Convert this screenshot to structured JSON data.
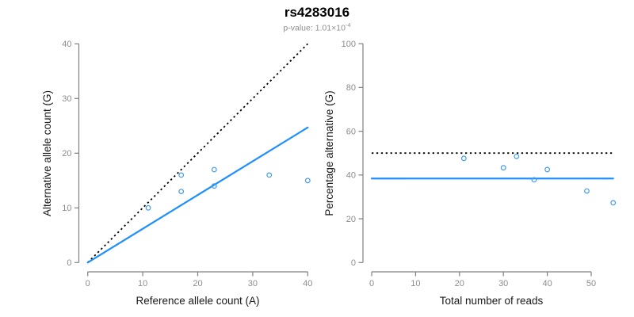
{
  "title": "rs4283016",
  "subtitle": {
    "text": "p-value: 1.01×10",
    "exponent": "-4"
  },
  "colors": {
    "fit_line_blue": "#1E8FFF",
    "point_blue": "#439BE8",
    "reference_black": "#000000",
    "axis_gray": "#808080",
    "tick_label_gray": "#8C8C8C",
    "axis_title_black": "#1A1A1A",
    "subtitle_gray": "#8E8E8E",
    "background": "#FFFFFF"
  },
  "chart_data": [
    {
      "type": "scatter",
      "panel": "left",
      "xlabel": "Reference allele count (A)",
      "ylabel": "Alternative allele count (G)",
      "xlim": [
        0,
        40
      ],
      "ylim": [
        0,
        40
      ],
      "xticks": [
        0,
        10,
        20,
        30,
        40
      ],
      "yticks": [
        0,
        10,
        20,
        30,
        40
      ],
      "grid": false,
      "legend": "none",
      "points": [
        {
          "x": 11,
          "y": 10
        },
        {
          "x": 17,
          "y": 13
        },
        {
          "x": 17,
          "y": 16
        },
        {
          "x": 23,
          "y": 14
        },
        {
          "x": 23,
          "y": 17
        },
        {
          "x": 33,
          "y": 16
        },
        {
          "x": 40,
          "y": 15
        }
      ],
      "lines": [
        {
          "name": "identity-line",
          "style": "dotted",
          "color": "#000000",
          "from": {
            "x": 0,
            "y": 0
          },
          "to": {
            "x": 40,
            "y": 40
          }
        },
        {
          "name": "fit-line",
          "style": "solid",
          "color": "#1E8FFF",
          "from": {
            "x": 0,
            "y": 0
          },
          "to": {
            "x": 40,
            "y": 24.7
          }
        }
      ]
    },
    {
      "type": "scatter",
      "panel": "right",
      "xlabel": "Total number of reads",
      "ylabel": "Percentage alternative (G)",
      "xlim": [
        0,
        55
      ],
      "ylim": [
        0,
        100
      ],
      "xticks": [
        0,
        10,
        20,
        30,
        40,
        50
      ],
      "yticks": [
        0,
        20,
        40,
        60,
        80,
        100
      ],
      "grid": false,
      "legend": "none",
      "points": [
        {
          "x": 21,
          "y": 47.6
        },
        {
          "x": 30,
          "y": 43.3
        },
        {
          "x": 33,
          "y": 48.5
        },
        {
          "x": 37,
          "y": 37.8
        },
        {
          "x": 40,
          "y": 42.5
        },
        {
          "x": 49,
          "y": 32.7
        },
        {
          "x": 55,
          "y": 27.3
        }
      ],
      "lines": [
        {
          "name": "fifty-percent-line",
          "style": "dotted",
          "color": "#000000",
          "from": {
            "x": 0,
            "y": 50
          },
          "to": {
            "x": 55,
            "y": 50
          }
        },
        {
          "name": "mean-percentage-line",
          "style": "solid",
          "color": "#1E8FFF",
          "from": {
            "x": 0,
            "y": 38.4
          },
          "to": {
            "x": 55,
            "y": 38.4
          }
        }
      ]
    }
  ]
}
